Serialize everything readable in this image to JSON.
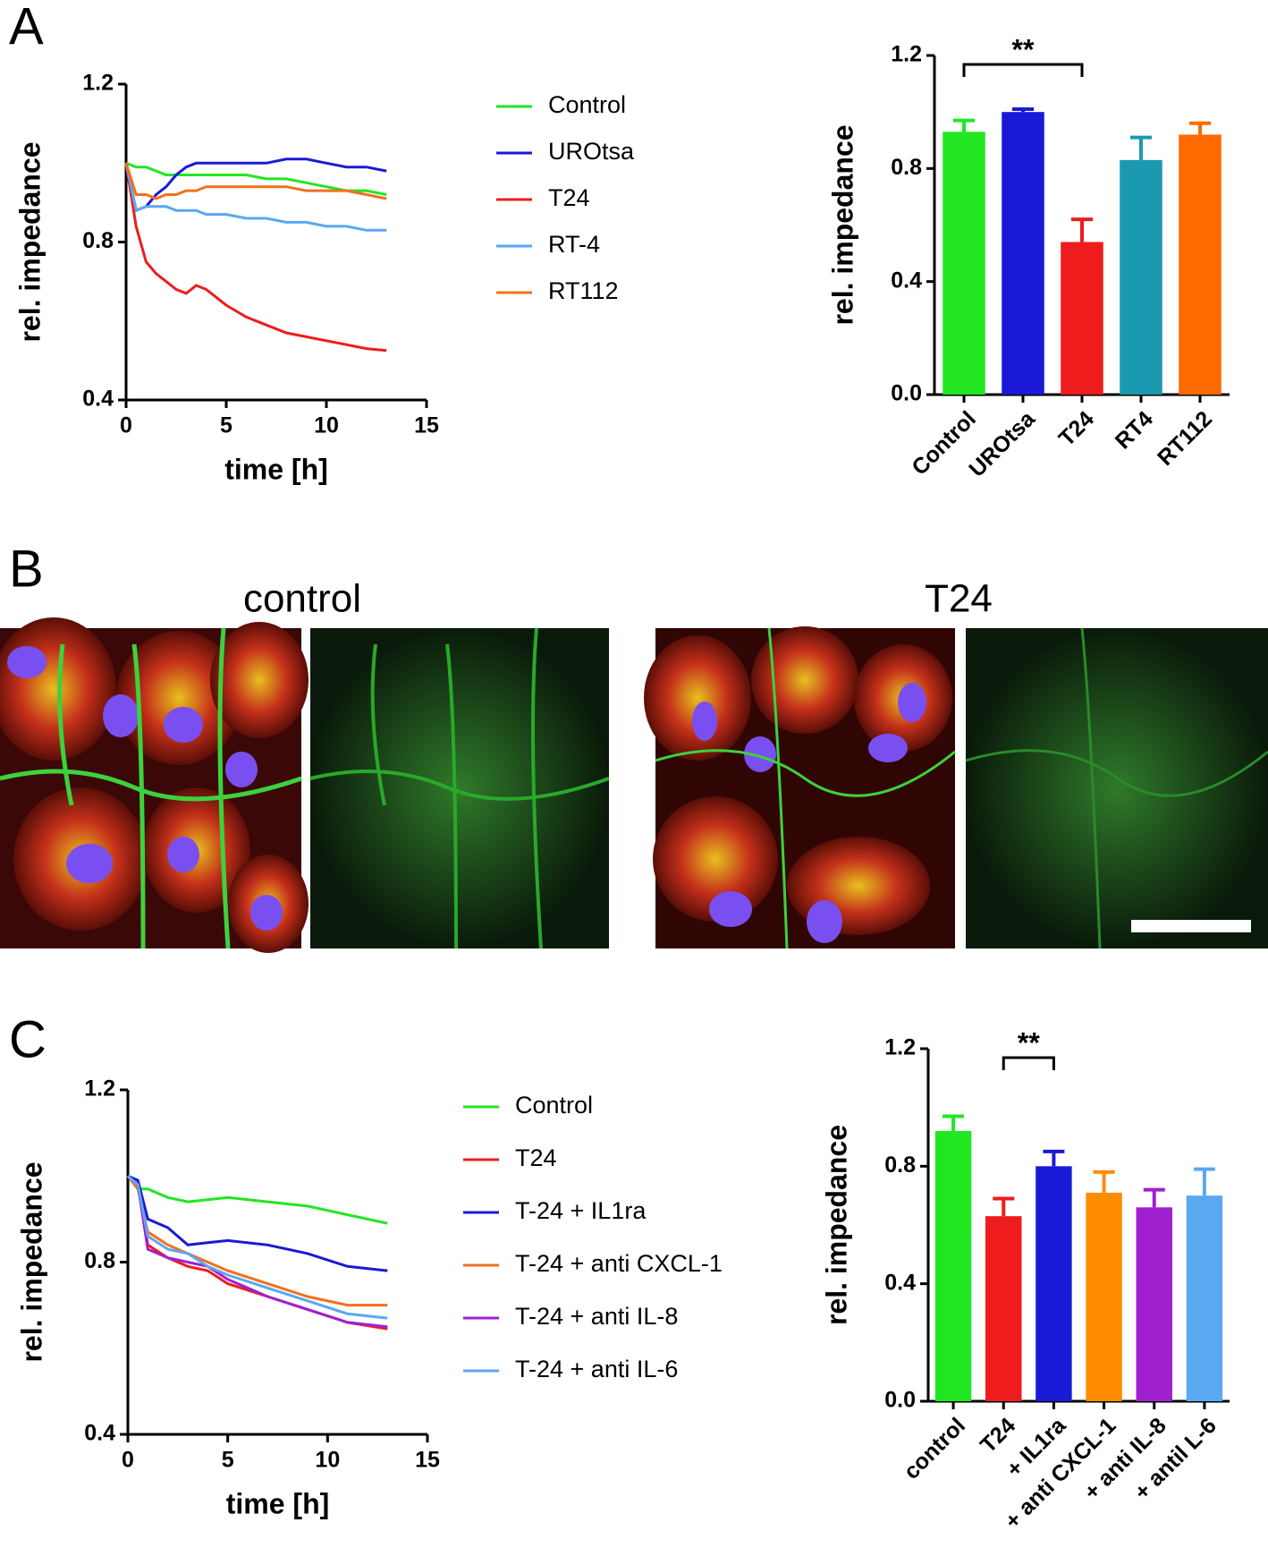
{
  "panel_labels": [
    "A",
    "B",
    "C"
  ],
  "image_titles": [
    "control",
    "T24"
  ],
  "chart_data": [
    {
      "type": "line",
      "xlabel": "time [h]",
      "ylabel": "rel. impedance",
      "x": [
        0,
        0.5,
        1,
        1.5,
        2,
        2.5,
        3,
        3.5,
        4,
        5,
        6,
        7,
        8,
        9,
        10,
        11,
        12,
        13
      ],
      "xlim": [
        0,
        15
      ],
      "xticks": [
        0,
        5,
        10,
        15
      ],
      "ylim": [
        0.4,
        1.2
      ],
      "yticks": [
        0.4,
        0.8,
        1.2
      ],
      "series": [
        {
          "name": "Control",
          "color": "#22e622",
          "values": [
            1.0,
            0.99,
            0.99,
            0.98,
            0.97,
            0.97,
            0.97,
            0.97,
            0.97,
            0.97,
            0.97,
            0.96,
            0.96,
            0.95,
            0.94,
            0.93,
            0.93,
            0.92
          ]
        },
        {
          "name": "UROtsa",
          "color": "#1a1ad6",
          "values": [
            1.0,
            0.88,
            0.89,
            0.92,
            0.94,
            0.97,
            0.99,
            1.0,
            1.0,
            1.0,
            1.0,
            1.0,
            1.01,
            1.01,
            1.0,
            0.99,
            0.99,
            0.98
          ]
        },
        {
          "name": "T24",
          "color": "#ee1c1c",
          "values": [
            1.0,
            0.84,
            0.75,
            0.72,
            0.7,
            0.68,
            0.67,
            0.69,
            0.68,
            0.64,
            0.61,
            0.59,
            0.57,
            0.56,
            0.55,
            0.54,
            0.53,
            0.525
          ]
        },
        {
          "name": "RT-4",
          "color": "#5aa8f0",
          "values": [
            1.0,
            0.88,
            0.89,
            0.89,
            0.89,
            0.88,
            0.88,
            0.88,
            0.87,
            0.87,
            0.86,
            0.86,
            0.85,
            0.85,
            0.84,
            0.84,
            0.83,
            0.83
          ]
        },
        {
          "name": "RT112",
          "color": "#f2701e",
          "values": [
            1.0,
            0.92,
            0.92,
            0.91,
            0.92,
            0.92,
            0.93,
            0.93,
            0.94,
            0.94,
            0.94,
            0.94,
            0.94,
            0.93,
            0.93,
            0.93,
            0.92,
            0.91
          ]
        }
      ]
    },
    {
      "type": "bar",
      "ylabel": "rel. impedance",
      "categories": [
        "Control",
        "UROtsa",
        "T24",
        "RT4",
        "RT112"
      ],
      "values": [
        0.93,
        1.0,
        0.54,
        0.83,
        0.92
      ],
      "errors": [
        0.04,
        0.01,
        0.08,
        0.08,
        0.04
      ],
      "colors": [
        "#22e622",
        "#1a1ad6",
        "#ee1c1c",
        "#1a99b0",
        "#ff6a00"
      ],
      "ylim": [
        0,
        1.2
      ],
      "yticks": [
        {
          "value": 0,
          "label": "0.0"
        },
        0.4,
        0.8,
        1.2
      ],
      "significance": [
        {
          "label": "**",
          "between": [
            0,
            2
          ]
        }
      ]
    },
    {
      "type": "line",
      "xlabel": "time [h]",
      "ylabel": "rel. impedance",
      "x": [
        0,
        0.5,
        1,
        2,
        3,
        4,
        5,
        7,
        9,
        11,
        13
      ],
      "xlim": [
        0,
        15
      ],
      "xticks": [
        0,
        5,
        10,
        15
      ],
      "ylim": [
        0.4,
        1.2
      ],
      "yticks": [
        0.4,
        0.8,
        1.2
      ],
      "series": [
        {
          "name": "Control",
          "color": "#22e622",
          "values": [
            1.0,
            0.97,
            0.97,
            0.95,
            0.94,
            0.945,
            0.95,
            0.94,
            0.93,
            0.91,
            0.89
          ]
        },
        {
          "name": "T24",
          "color": "#ee1c1c",
          "values": [
            1.0,
            0.98,
            0.84,
            0.81,
            0.79,
            0.78,
            0.75,
            0.72,
            0.69,
            0.66,
            0.645
          ]
        },
        {
          "name": "T-24 + IL1ra",
          "color": "#1a1ad6",
          "values": [
            1.0,
            0.99,
            0.9,
            0.88,
            0.84,
            0.845,
            0.85,
            0.84,
            0.82,
            0.79,
            0.78
          ]
        },
        {
          "name": "T-24 + anti CXCL-1",
          "color": "#f2701e",
          "values": [
            1.0,
            0.97,
            0.87,
            0.84,
            0.82,
            0.8,
            0.78,
            0.75,
            0.72,
            0.7,
            0.7
          ]
        },
        {
          "name": "T-24 + anti IL-8",
          "color": "#a020d0",
          "values": [
            1.0,
            0.98,
            0.83,
            0.81,
            0.8,
            0.79,
            0.76,
            0.72,
            0.69,
            0.66,
            0.65
          ]
        },
        {
          "name": "T-24 + anti IL-6",
          "color": "#5aa8f0",
          "values": [
            1.0,
            0.98,
            0.86,
            0.83,
            0.82,
            0.79,
            0.77,
            0.74,
            0.71,
            0.68,
            0.67
          ]
        }
      ]
    },
    {
      "type": "bar",
      "ylabel": "rel. impedance",
      "categories": [
        "control",
        "T24",
        "+ IL1ra",
        "+ anti CXCL-1",
        "+ anti IL-8",
        "+ antil L-6"
      ],
      "values": [
        0.92,
        0.63,
        0.8,
        0.71,
        0.66,
        0.7
      ],
      "errors": [
        0.05,
        0.06,
        0.05,
        0.07,
        0.06,
        0.09
      ],
      "colors": [
        "#22e622",
        "#ee1c1c",
        "#1a1ad6",
        "#ff8c00",
        "#a020d0",
        "#5aa8f0"
      ],
      "ylim": [
        0,
        1.2
      ],
      "yticks": [
        {
          "value": 0,
          "label": "0.0"
        },
        0.4,
        0.8,
        1.2
      ],
      "significance": [
        {
          "label": "**",
          "between": [
            1,
            2
          ]
        }
      ]
    }
  ]
}
